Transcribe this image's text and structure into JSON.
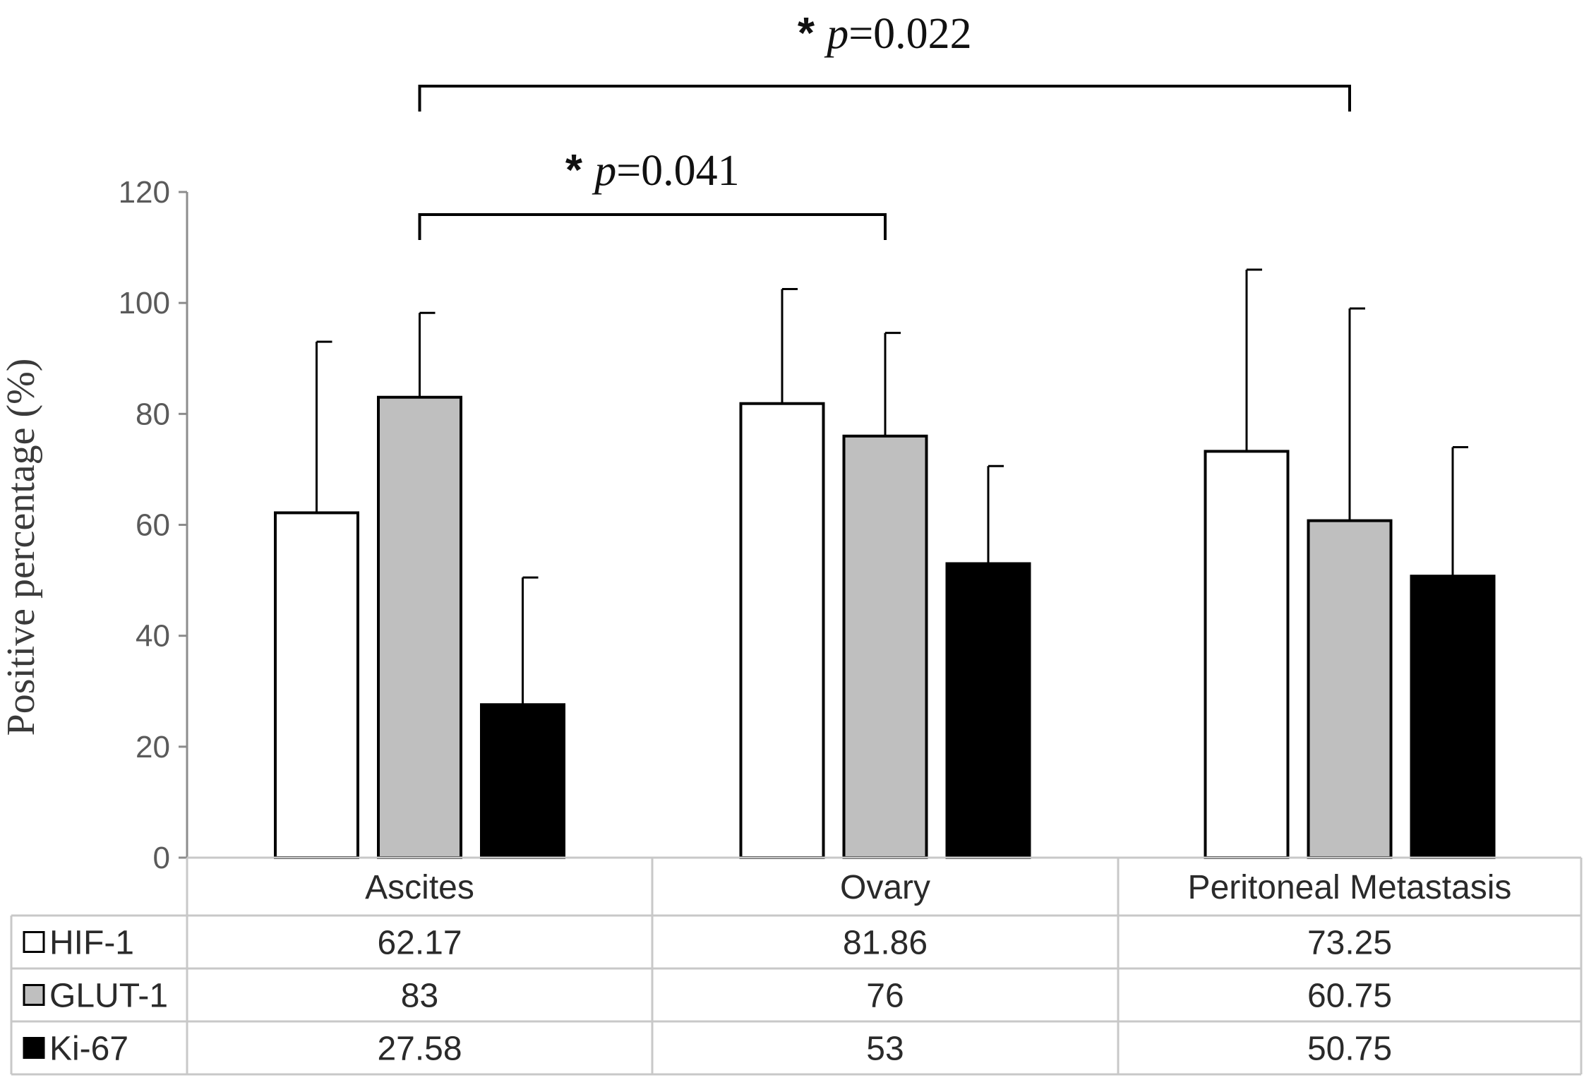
{
  "chart_data": {
    "type": "bar",
    "ylabel": "Positive percentage (%)",
    "xlabel": "",
    "ylim": [
      0,
      120
    ],
    "yticks": [
      0,
      20,
      40,
      60,
      80,
      100,
      120
    ],
    "grid": false,
    "legend": "data-table-rows",
    "categories": [
      "Ascites",
      "Ovary",
      "Peritoneal Metastasis"
    ],
    "series": [
      {
        "name": "HIF-1",
        "values": [
          62.17,
          81.86,
          73.25
        ],
        "value_labels": [
          "62.17",
          "81.86",
          "73.25"
        ],
        "error_upper": [
          93,
          102.5,
          106
        ],
        "color": "#ffffff"
      },
      {
        "name": "GLUT-1",
        "values": [
          83,
          76,
          60.75
        ],
        "value_labels": [
          "83",
          "76",
          "60.75"
        ],
        "error_upper": [
          98.2,
          94.6,
          99
        ],
        "color": "#bfbfbf"
      },
      {
        "name": "Ki-67",
        "values": [
          27.58,
          53,
          50.75
        ],
        "value_labels": [
          "27.58",
          "53",
          "50.75"
        ],
        "error_upper": [
          50.5,
          70.6,
          74
        ],
        "color": "#000000"
      }
    ],
    "annotations": [
      {
        "star": "*",
        "p_label": "p",
        "value_text": "=0.022",
        "from": "Ascites",
        "to": "Peritoneal Metastasis"
      },
      {
        "star": "*",
        "p_label": "p",
        "value_text": "=0.041",
        "from": "Ascites",
        "to": "Ovary"
      }
    ],
    "colors": {
      "axis": "#8c8c8c",
      "table_border": "#c8c8c8",
      "bar_outline": "#000000"
    }
  }
}
